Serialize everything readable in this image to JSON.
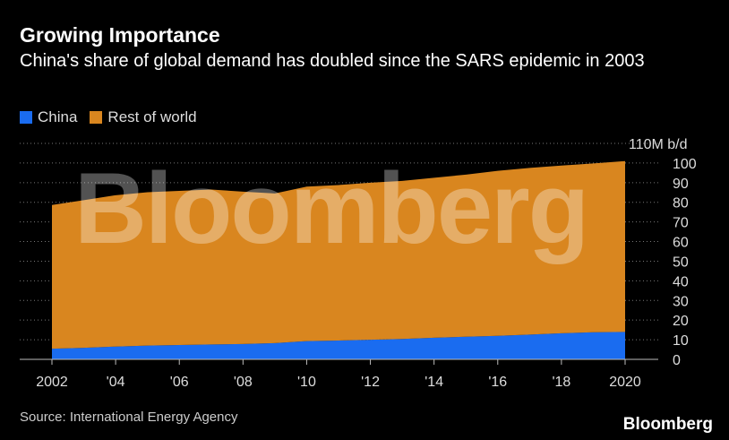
{
  "header": {
    "title": "Growing Importance",
    "subtitle": "China's share of global demand has doubled since the SARS epidemic in 2003"
  },
  "legend": {
    "items": [
      {
        "label": "China",
        "color": "#1a6cf0"
      },
      {
        "label": "Rest of world",
        "color": "#d9861f"
      }
    ]
  },
  "footer": {
    "source": "Source: International Energy Agency",
    "brand": "Bloomberg"
  },
  "watermark": "Bloomberg",
  "chart_data": {
    "type": "area",
    "stacked": true,
    "unit_label": "110M b/d",
    "x": [
      2002,
      2003,
      2004,
      2005,
      2006,
      2007,
      2008,
      2009,
      2010,
      2011,
      2012,
      2013,
      2014,
      2015,
      2016,
      2017,
      2018,
      2019,
      2020
    ],
    "x_tick_values": [
      2002,
      2004,
      2006,
      2008,
      2010,
      2012,
      2014,
      2016,
      2018,
      2020
    ],
    "x_tick_labels": [
      "2002",
      "'04",
      "'06",
      "'08",
      "'10",
      "'12",
      "'14",
      "'16",
      "'18",
      "2020"
    ],
    "y_ticks": [
      0,
      10,
      20,
      30,
      40,
      50,
      60,
      70,
      80,
      90,
      100
    ],
    "ylim": [
      0,
      110
    ],
    "grid": true,
    "series": [
      {
        "name": "China",
        "color": "#1a6cf0",
        "values": [
          5.4,
          5.9,
          6.5,
          7.0,
          7.3,
          7.6,
          7.8,
          8.3,
          9.3,
          9.6,
          10.0,
          10.4,
          11.0,
          11.5,
          12.0,
          12.6,
          13.3,
          13.8,
          14.0
        ]
      },
      {
        "name": "Rest of world",
        "color": "#d9861f",
        "values": [
          73.2,
          75.2,
          77.1,
          78.1,
          78.5,
          78.9,
          77.6,
          76.2,
          78.7,
          79.2,
          80.0,
          80.5,
          81.5,
          82.6,
          84.0,
          84.9,
          85.4,
          86.0,
          87.0
        ]
      }
    ]
  }
}
